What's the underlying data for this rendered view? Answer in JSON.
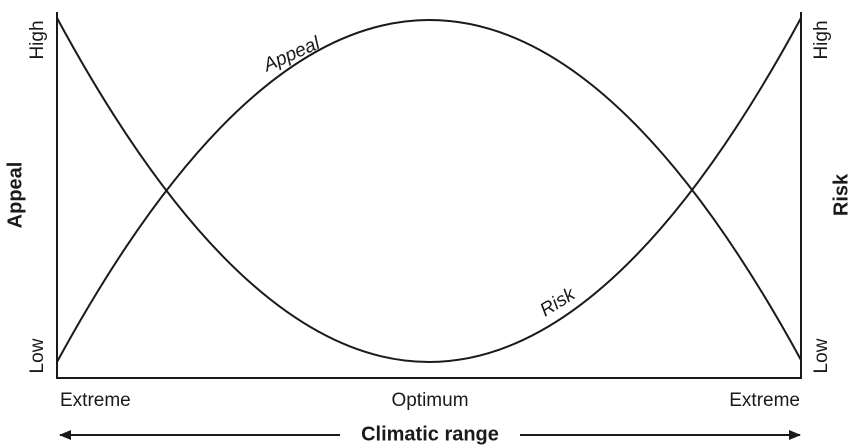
{
  "left_axis": {
    "title": "Appeal",
    "high": "High",
    "low": "Low"
  },
  "right_axis": {
    "title": "Risk",
    "high": "High",
    "low": "Low"
  },
  "curves": [
    {
      "label": "Appeal"
    },
    {
      "label": "Risk"
    }
  ],
  "x_axis": {
    "labels": [
      "Extreme",
      "Optimum",
      "Extreme"
    ],
    "title": "Climatic range"
  }
}
